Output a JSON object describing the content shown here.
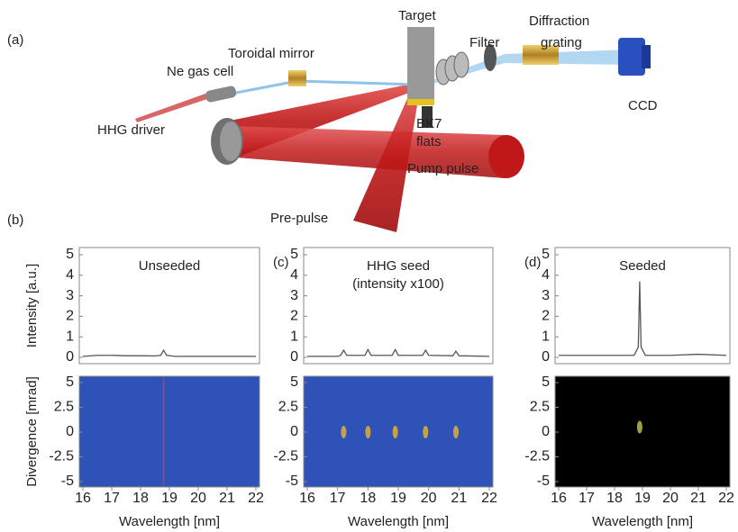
{
  "diagram": {
    "panel_label": "(a)",
    "target": "Target",
    "diffraction_grating": [
      "Diffraction",
      "grating"
    ],
    "toroidal_mirror": "Toroidal mirror",
    "filter": "Filter",
    "ne_gas_cell": "Ne gas cell",
    "bk7_flats": [
      "BK7",
      "flats"
    ],
    "ccd": "CCD",
    "hhg_driver": "HHG driver",
    "pump_pulse": "Pump pulse",
    "pre_pulse": "Pre-pulse"
  },
  "chart_data": [
    {
      "type": "line",
      "panel_label": "(b)",
      "annotation": [
        "Unseeded"
      ],
      "y_label": "Intensity [a.u.]",
      "color": "#555555",
      "x": [
        16,
        16.5,
        17,
        17.5,
        18,
        18.5,
        18.7,
        18.8,
        18.9,
        19.2,
        19.5,
        20,
        20.5,
        21,
        21.5,
        22
      ],
      "values": [
        0.05,
        0.1,
        0.1,
        0.08,
        0.08,
        0.07,
        0.1,
        0.35,
        0.1,
        0.05,
        0.05,
        0.05,
        0.05,
        0.05,
        0.05,
        0.05
      ],
      "xlim": [
        16,
        22
      ],
      "ylim": [
        0,
        5
      ],
      "yticks": [
        0,
        1,
        2,
        3,
        4,
        5
      ]
    },
    {
      "type": "map",
      "y_label": "Divergence [mrad]",
      "x_label": "Wavelength [nm]",
      "background": "#2f52b8",
      "line_x": [
        18.8
      ],
      "line_color": "#b04060",
      "xlim": [
        16,
        22
      ],
      "xticks": [
        16,
        17,
        18,
        19,
        20,
        21,
        22
      ],
      "ylim": [
        -5,
        5
      ],
      "yticks": [
        5,
        2.5,
        0,
        -2.5,
        -5
      ]
    },
    {
      "type": "line",
      "panel_label": "(c)",
      "annotation": [
        "HHG seed",
        "(intensity x100)"
      ],
      "color": "#555555",
      "x": [
        16,
        17,
        17.1,
        17.2,
        17.3,
        17.9,
        18,
        18.1,
        18.8,
        18.9,
        19,
        19.8,
        19.9,
        20,
        20.8,
        20.9,
        21,
        22
      ],
      "values": [
        0.05,
        0.05,
        0.1,
        0.35,
        0.1,
        0.1,
        0.38,
        0.1,
        0.1,
        0.38,
        0.1,
        0.1,
        0.35,
        0.1,
        0.08,
        0.3,
        0.08,
        0.05
      ],
      "xlim": [
        16,
        22
      ],
      "ylim": [
        0,
        5
      ],
      "yticks": [
        0,
        1,
        2,
        3,
        4,
        5
      ]
    },
    {
      "type": "map",
      "x_label": "Wavelength [nm]",
      "background": "#2f52b8",
      "spots_x": [
        17.2,
        18,
        18.9,
        19.9,
        20.9
      ],
      "spots_y": [
        0,
        0,
        0,
        0,
        0
      ],
      "spot_color": "#c8a048",
      "xlim": [
        16,
        22
      ],
      "xticks": [
        16,
        17,
        18,
        19,
        20,
        21,
        22
      ],
      "ylim": [
        -5,
        5
      ],
      "yticks": [
        5,
        2.5,
        0,
        -2.5,
        -5
      ]
    },
    {
      "type": "line",
      "panel_label": "(d)",
      "annotation": [
        "Seeded"
      ],
      "color": "#555555",
      "x": [
        16,
        17,
        18,
        18.7,
        18.85,
        18.9,
        18.95,
        19.1,
        20,
        21,
        22
      ],
      "values": [
        0.1,
        0.1,
        0.1,
        0.1,
        0.5,
        3.7,
        0.5,
        0.1,
        0.1,
        0.15,
        0.1
      ],
      "xlim": [
        16,
        22
      ],
      "ylim": [
        0,
        5
      ],
      "yticks": [
        0,
        1,
        2,
        3,
        4,
        5
      ]
    },
    {
      "type": "map",
      "x_label": "Wavelength [nm]",
      "background": "#000000",
      "spots_x": [
        18.9
      ],
      "spots_y": [
        0.5
      ],
      "spot_color": "#a0a040",
      "xlim": [
        16,
        22
      ],
      "xticks": [
        16,
        17,
        18,
        19,
        20,
        21,
        22
      ],
      "ylim": [
        -5,
        5
      ],
      "yticks": [
        5,
        2.5,
        0,
        -2.5,
        -5
      ]
    }
  ]
}
